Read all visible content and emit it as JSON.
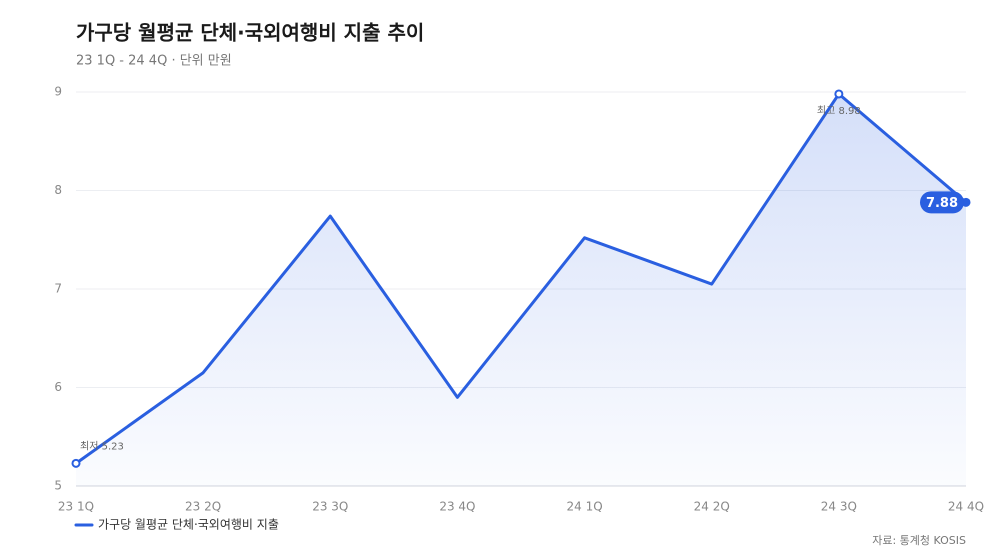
{
  "chart_data": {
    "type": "line",
    "title": "가구당 월평균 단체·국외여행비 지출 추이",
    "subtitle": "23 1Q - 24 4Q · 단위 만원",
    "source": "자료: 통계청 KOSIS",
    "categories": [
      "23 1Q",
      "23 2Q",
      "23 3Q",
      "23 4Q",
      "24 1Q",
      "24 2Q",
      "24 3Q",
      "24 4Q"
    ],
    "series": [
      {
        "name": "가구당 월평균 단체·국외여행비 지출",
        "color": "#2a5fe0",
        "values": [
          5.23,
          6.15,
          7.74,
          5.9,
          7.52,
          7.05,
          8.98,
          7.88
        ],
        "value_labels": [
          "최저 5.23",
          null,
          null,
          null,
          null,
          null,
          "최고 8.98",
          null
        ]
      }
    ],
    "ylim": [
      5,
      9
    ],
    "yticks": [
      5,
      6,
      7,
      8,
      9
    ],
    "grid": true,
    "legend": "bottom-left"
  }
}
